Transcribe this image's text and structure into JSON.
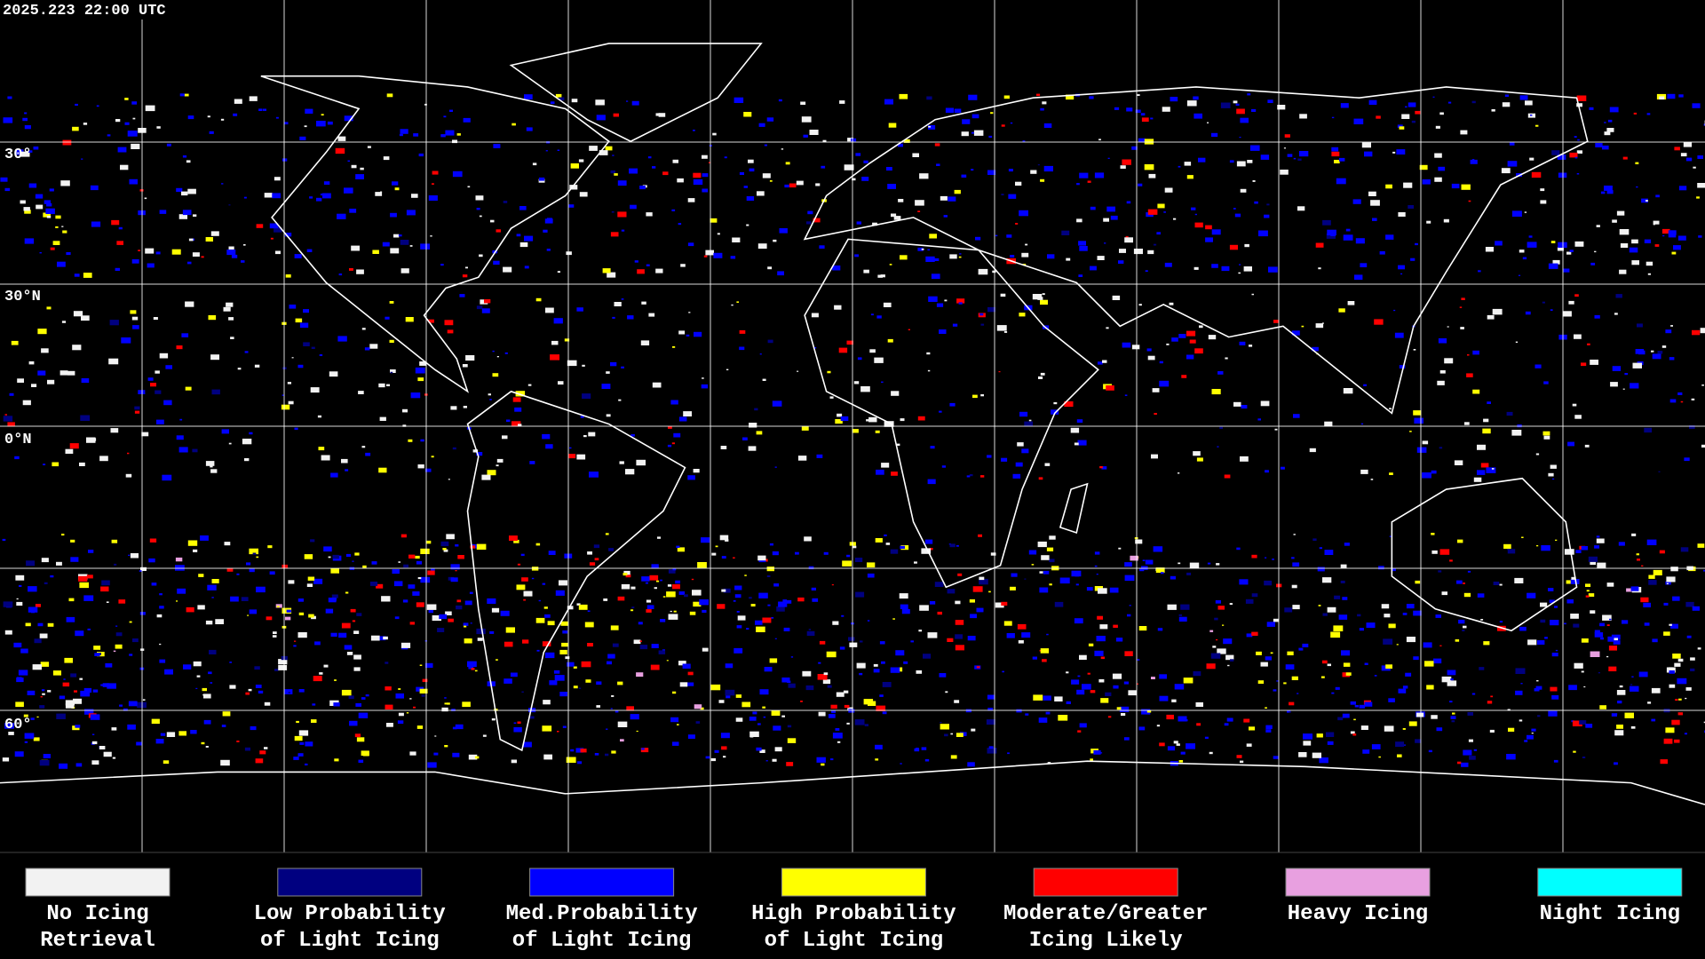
{
  "header": {
    "timestamp": "2025.223 22:00 UTC"
  },
  "map": {
    "latitude_labels": [
      "30°",
      "30°N",
      "0°N",
      "60°"
    ]
  },
  "legend": {
    "items": [
      {
        "label": [
          "No Icing",
          "Retrieval"
        ],
        "color": "#f2f2f2"
      },
      {
        "label": [
          "Low Probability",
          "of Light Icing"
        ],
        "color": "#000080"
      },
      {
        "label": [
          "Med.Probability",
          "of Light Icing"
        ],
        "color": "#0000ff"
      },
      {
        "label": [
          "High Probability",
          "of Light Icing"
        ],
        "color": "#ffff00"
      },
      {
        "label": [
          "Moderate/Greater",
          "Icing Likely"
        ],
        "color": "#ff0000"
      },
      {
        "label": [
          "Heavy Icing"
        ],
        "color": "#e8a0e0"
      },
      {
        "label": [
          "Night Icing"
        ],
        "color": "#00ffff"
      }
    ]
  }
}
